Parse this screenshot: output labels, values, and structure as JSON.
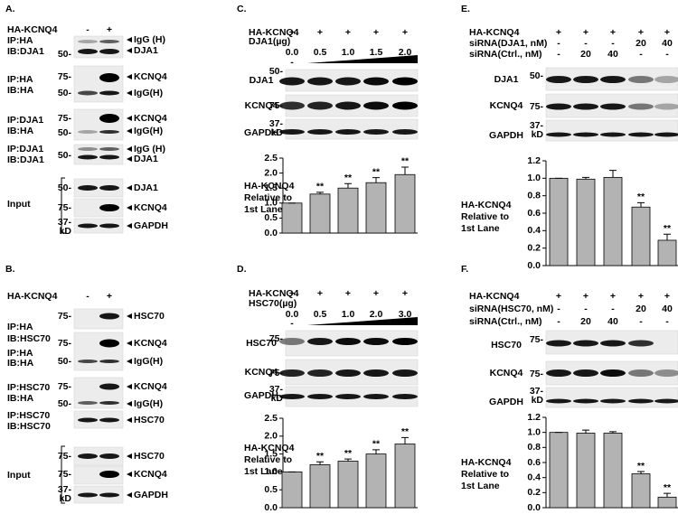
{
  "panels": {
    "A": {
      "letter": "A.",
      "header": {
        "label": "HA-KCNQ4",
        "lanes": [
          "-",
          "+"
        ]
      },
      "blots": [
        {
          "label": [
            "IP:HA",
            "IB:DJA1"
          ],
          "markers": [
            "50-"
          ],
          "bands": [
            "IgG (H)",
            "DJA1"
          ]
        },
        {
          "label": [
            "IP:HA",
            "IB:HA"
          ],
          "markers": [
            "75-",
            "50-"
          ],
          "bands": [
            "KCNQ4",
            "IgG(H)"
          ]
        },
        {
          "label": [
            "IP:DJA1",
            "IB:HA"
          ],
          "markers": [
            "75-",
            "50-"
          ],
          "bands": [
            "KCNQ4",
            "IgG(H)"
          ]
        },
        {
          "label": [
            "IP:DJA1",
            "IB:DJA1"
          ],
          "markers": [
            "50-"
          ],
          "bands": [
            "IgG (H)",
            "DJA1"
          ]
        }
      ],
      "input": {
        "label": "Input",
        "blots": [
          {
            "markers": [
              "50-"
            ],
            "bands": [
              "DJA1"
            ]
          },
          {
            "markers": [
              "75-"
            ],
            "bands": [
              "KCNQ4"
            ]
          },
          {
            "markers": [
              "37-",
              "kD"
            ],
            "bands": [
              "GAPDH"
            ]
          }
        ]
      }
    },
    "B": {
      "letter": "B.",
      "header": {
        "label": "HA-KCNQ4",
        "lanes": [
          "-",
          "+"
        ]
      },
      "blots": [
        {
          "label": [
            "IP:HA",
            "IB:HSC70"
          ],
          "markers": [
            "75-"
          ],
          "bands": [
            "HSC70"
          ]
        },
        {
          "label": [
            "IP:HA",
            "IB:HA"
          ],
          "markers": [
            "75-",
            "50-"
          ],
          "bands": [
            "KCNQ4",
            "IgG(H)"
          ]
        },
        {
          "label": [
            "IP:HSC70",
            "IB:HA"
          ],
          "markers": [
            "75-",
            "50-"
          ],
          "bands": [
            "KCNQ4",
            "IgG(H)"
          ]
        },
        {
          "label": [
            "IP:HSC70",
            "IB:HSC70"
          ],
          "markers": [],
          "bands": [
            "HSC70"
          ]
        }
      ],
      "input": {
        "label": "Input",
        "blots": [
          {
            "markers": [
              "75-"
            ],
            "bands": [
              "HSC70"
            ]
          },
          {
            "markers": [
              "75-"
            ],
            "bands": [
              "KCNQ4"
            ]
          },
          {
            "markers": [
              "37-",
              "kD"
            ],
            "bands": [
              "GAPDH"
            ]
          }
        ]
      }
    },
    "C": {
      "letter": "C.",
      "conditions": [
        {
          "label": "HA-KCNQ4",
          "values": [
            "+",
            "+",
            "+",
            "+",
            "+"
          ]
        },
        {
          "label": "DJA1(µg)",
          "values": [
            "0.0",
            "0.5",
            "1.0",
            "1.5",
            "2.0"
          ]
        }
      ],
      "wedge_start": "-",
      "blots": [
        {
          "label": "DJA1",
          "markers": [
            "50-"
          ]
        },
        {
          "label": "KCNQ4",
          "markers": [
            "75-"
          ]
        },
        {
          "label": "GAPDH",
          "markers": [
            "37-",
            "kD"
          ]
        }
      ]
    },
    "D": {
      "letter": "D.",
      "conditions": [
        {
          "label": "HA-KCNQ4",
          "values": [
            "+",
            "+",
            "+",
            "+",
            "+"
          ]
        },
        {
          "label": "HSC70(µg)",
          "values": [
            "0.0",
            "0.5",
            "1.0",
            "2.0",
            "3.0"
          ]
        }
      ],
      "wedge_start": "-",
      "blots": [
        {
          "label": "HSC70",
          "markers": [
            "75-"
          ]
        },
        {
          "label": "KCNQ4",
          "markers": [
            "75-"
          ]
        },
        {
          "label": "GAPDH",
          "markers": [
            "37-",
            "kD"
          ]
        }
      ]
    },
    "E": {
      "letter": "E.",
      "conditions": [
        {
          "label": "HA-KCNQ4",
          "values": [
            "+",
            "+",
            "+",
            "+",
            "+"
          ]
        },
        {
          "label": "siRNA(DJA1, nM)",
          "values": [
            "-",
            "-",
            "-",
            "20",
            "40"
          ]
        },
        {
          "label": "siRNA(Ctrl., nM)",
          "values": [
            "-",
            "20",
            "40",
            "-",
            "-"
          ]
        }
      ],
      "blots": [
        {
          "label": "DJA1",
          "markers": [
            "50-"
          ]
        },
        {
          "label": "KCNQ4",
          "markers": [
            "75-"
          ]
        },
        {
          "label": "GAPDH",
          "markers": [
            "37-",
            "kD"
          ]
        }
      ]
    },
    "F": {
      "letter": "F.",
      "conditions": [
        {
          "label": "HA-KCNQ4",
          "values": [
            "+",
            "+",
            "+",
            "+",
            "+"
          ]
        },
        {
          "label": "siRNA(HSC70, nM)",
          "values": [
            "-",
            "-",
            "-",
            "20",
            "40"
          ]
        },
        {
          "label": "siRNA(Ctrl., nM)",
          "values": [
            "-",
            "20",
            "40",
            "-",
            "-"
          ]
        }
      ],
      "blots": [
        {
          "label": "HSC70",
          "markers": [
            "75-"
          ]
        },
        {
          "label": "KCNQ4",
          "markers": [
            "75-"
          ]
        },
        {
          "label": "GAPDH",
          "markers": [
            "37-",
            "kD"
          ]
        }
      ]
    }
  },
  "chart_data": [
    {
      "type": "bar",
      "ylabel": [
        "HA-KCNQ4",
        "Relative to",
        "1st Lane"
      ],
      "color": "#b3b3b3",
      "values": [
        1.0,
        1.3,
        1.5,
        1.68,
        1.95
      ],
      "errors": [
        0,
        0.06,
        0.15,
        0.17,
        0.25
      ],
      "annotations": [
        null,
        "**",
        "**",
        "**",
        "**"
      ],
      "ylim": [
        0,
        2.5
      ],
      "yticks": [
        {
          "value": 0,
          "label": "0.0"
        },
        0.5,
        {
          "value": 1,
          "label": "1.0"
        },
        1.5,
        {
          "value": 2,
          "label": "2.0"
        },
        2.5
      ]
    },
    {
      "type": "bar",
      "ylabel": [
        "HA-KCNQ4",
        "Relative to",
        "1st Lane"
      ],
      "color": "#b3b3b3",
      "values": [
        1.0,
        1.2,
        1.3,
        1.5,
        1.78
      ],
      "errors": [
        0,
        0.08,
        0.06,
        0.12,
        0.18
      ],
      "annotations": [
        null,
        "**",
        "**",
        "**",
        "**"
      ],
      "ylim": [
        0,
        2.5
      ],
      "yticks": [
        {
          "value": 0,
          "label": "0.0"
        },
        0.5,
        {
          "value": 1,
          "label": "1.0"
        },
        1.5,
        {
          "value": 2,
          "label": "2.0"
        },
        2.5
      ]
    },
    {
      "type": "bar",
      "ylabel": [
        "HA-KCNQ4",
        "Relative to",
        "1st Lane"
      ],
      "color": "#b3b3b3",
      "values": [
        1.0,
        0.99,
        1.01,
        0.67,
        0.29
      ],
      "errors": [
        0,
        0.02,
        0.08,
        0.05,
        0.07
      ],
      "annotations": [
        null,
        null,
        null,
        "**",
        "**"
      ],
      "ylim": [
        0,
        1.2
      ],
      "yticks": [
        {
          "value": 0,
          "label": "0.0"
        },
        0.2,
        0.4,
        0.6,
        0.8,
        {
          "value": 1,
          "label": "1.0"
        },
        1.2
      ]
    },
    {
      "type": "bar",
      "ylabel": [
        "HA-KCNQ4",
        "Relative to",
        "1st Lane"
      ],
      "color": "#b3b3b3",
      "values": [
        1.0,
        0.99,
        0.99,
        0.45,
        0.14
      ],
      "errors": [
        0,
        0.04,
        0.02,
        0.03,
        0.05
      ],
      "annotations": [
        null,
        null,
        null,
        "**",
        "**"
      ],
      "ylim": [
        0,
        1.2
      ],
      "yticks": [
        {
          "value": 0,
          "label": "0.0"
        },
        0.2,
        0.4,
        0.6,
        0.8,
        {
          "value": 1,
          "label": "1.0"
        },
        1.2
      ]
    }
  ]
}
